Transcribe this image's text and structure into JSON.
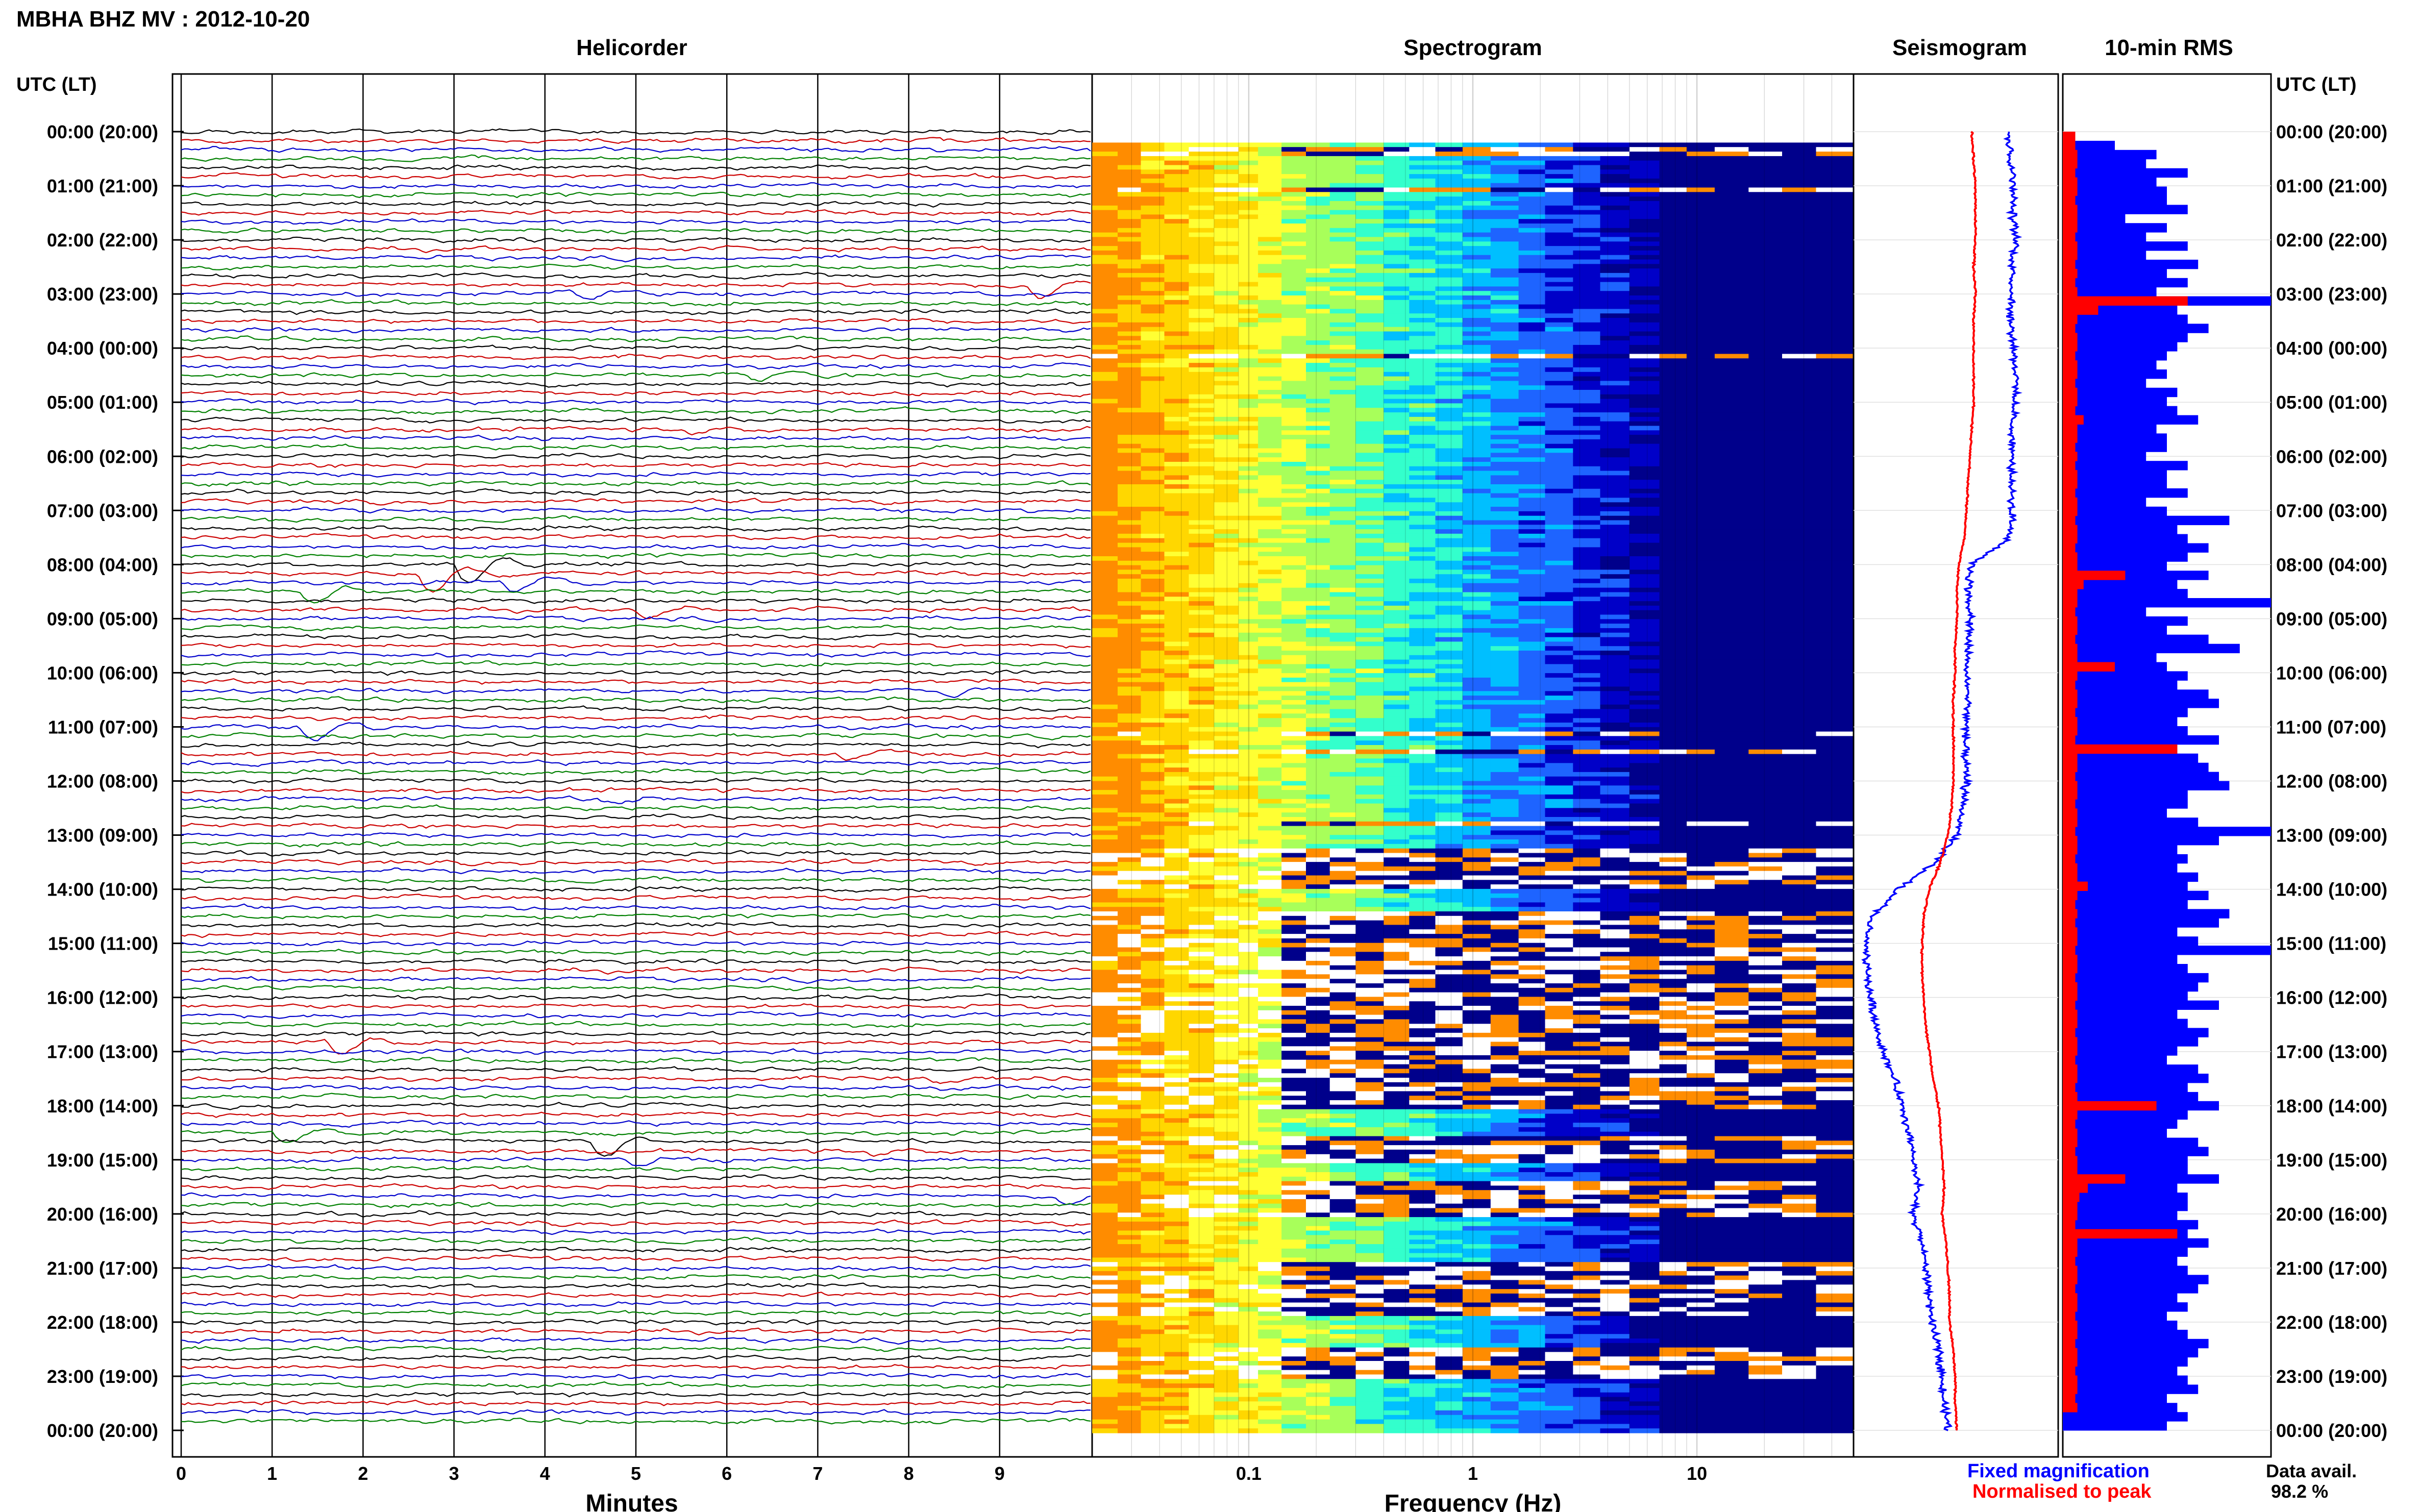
{
  "page_title": "MBHA BHZ MV : 2012-10-20",
  "hour_ticks": [
    "00:00 (20:00)",
    "01:00 (21:00)",
    "02:00 (22:00)",
    "03:00 (23:00)",
    "04:00 (00:00)",
    "05:00 (01:00)",
    "06:00 (02:00)",
    "07:00 (03:00)",
    "08:00 (04:00)",
    "09:00 (05:00)",
    "10:00 (06:00)",
    "11:00 (07:00)",
    "12:00 (08:00)",
    "13:00 (09:00)",
    "14:00 (10:00)",
    "15:00 (11:00)",
    "16:00 (12:00)",
    "17:00 (13:00)",
    "18:00 (14:00)",
    "19:00 (15:00)",
    "20:00 (16:00)",
    "21:00 (17:00)",
    "22:00 (18:00)",
    "23:00 (19:00)",
    "00:00 (20:00)"
  ],
  "chart_data": [
    {
      "type": "line",
      "title": "Helicorder",
      "y_axis_title": "UTC (LT)",
      "xlabel": "Minutes",
      "x_ticks": [
        "0",
        "1",
        "2",
        "3",
        "4",
        "5",
        "6",
        "7",
        "8",
        "9"
      ],
      "xlim": [
        0,
        10
      ],
      "trace_colors": [
        "#000000",
        "#cc0000",
        "#0000cc",
        "#008000"
      ],
      "rows_per_hour": 6,
      "grid": true
    },
    {
      "type": "heatmap",
      "title": "Spectrogram",
      "xlabel": "Frequency (Hz)",
      "x_scale": "log",
      "x_ticks": [
        "0.1",
        "1",
        "10"
      ],
      "x_tick_values": [
        0.1,
        1,
        10
      ],
      "xlim": [
        0.02,
        50
      ],
      "colormap": [
        "#ffffff",
        "#ff8c00",
        "#ffd700",
        "#ffff33",
        "#a8ff5a",
        "#33ffcc",
        "#00bfff",
        "#1e64ff",
        "#0000c8",
        "#00008b"
      ],
      "data_gaps_utc": [
        "00:17-00:25",
        "01:00-01:05",
        "04:05-04:10",
        "11:05-11:10",
        "11:22-11:28",
        "12:40-12:45",
        "13:10-13:55",
        "14:20-18:00",
        "18:30-19:00",
        "19:20-20:00",
        "20:50-21:50",
        "22:25-23:00"
      ]
    },
    {
      "type": "line",
      "title": "Seismogram",
      "legend": [
        {
          "name": "Fixed magnification",
          "color": "#0000ff"
        },
        {
          "name": "Normalised to peak",
          "color": "#ff0000"
        }
      ],
      "legend_position": "bottom",
      "x_hours": [
        0,
        0.5,
        1,
        1.5,
        2,
        2.5,
        3,
        3.5,
        4,
        4.5,
        5,
        5.5,
        6,
        6.5,
        7,
        7.5,
        8,
        8.5,
        9,
        9.5,
        10,
        10.5,
        11,
        11.5,
        12,
        12.5,
        13,
        13.5,
        14,
        14.5,
        15,
        15.5,
        16,
        16.5,
        17,
        17.5,
        18,
        18.5,
        19,
        19.5,
        20,
        20.5,
        21,
        21.5,
        22,
        22.5,
        23,
        23.5,
        24
      ],
      "series": [
        {
          "name": "Fixed magnification",
          "values": [
            0.8,
            0.81,
            0.83,
            0.82,
            0.84,
            0.82,
            0.82,
            0.81,
            0.83,
            0.84,
            0.83,
            0.82,
            0.82,
            0.81,
            0.82,
            0.81,
            0.6,
            0.58,
            0.59,
            0.58,
            0.57,
            0.58,
            0.57,
            0.56,
            0.57,
            0.55,
            0.52,
            0.4,
            0.2,
            0.06,
            0.02,
            0.03,
            0.05,
            0.08,
            0.12,
            0.18,
            0.22,
            0.26,
            0.28,
            0.31,
            0.28,
            0.33,
            0.35,
            0.37,
            0.38,
            0.42,
            0.44,
            0.45,
            0.47
          ]
        },
        {
          "name": "Normalised to peak",
          "values": [
            0.6,
            0.61,
            0.62,
            0.62,
            0.62,
            0.61,
            0.62,
            0.61,
            0.61,
            0.61,
            0.61,
            0.6,
            0.59,
            0.58,
            0.57,
            0.56,
            0.53,
            0.52,
            0.52,
            0.51,
            0.51,
            0.5,
            0.5,
            0.5,
            0.5,
            0.49,
            0.47,
            0.43,
            0.37,
            0.34,
            0.33,
            0.33,
            0.34,
            0.35,
            0.37,
            0.39,
            0.42,
            0.43,
            0.44,
            0.45,
            0.44,
            0.46,
            0.47,
            0.48,
            0.48,
            0.5,
            0.51,
            0.51,
            0.52
          ]
        }
      ],
      "annotation_title": "Data avail.",
      "annotation_value": "98.2 %"
    },
    {
      "type": "bar",
      "title": "10-min RMS",
      "orientation": "horizontal",
      "series": [
        {
          "name": "Fixed magnification",
          "color": "#0000ff",
          "values": [
            0.25,
            0.25,
            0.45,
            0.4,
            0.6,
            0.45,
            0.5,
            0.5,
            0.6,
            0.3,
            0.5,
            0.4,
            0.6,
            0.4,
            0.65,
            0.5,
            0.6,
            0.45,
            1.0,
            0.55,
            0.6,
            0.7,
            0.6,
            0.55,
            0.5,
            0.45,
            0.5,
            0.4,
            0.55,
            0.5,
            0.55,
            0.65,
            0.45,
            0.5,
            0.5,
            0.4,
            0.6,
            0.5,
            0.5,
            0.6,
            0.4,
            0.5,
            0.8,
            0.55,
            0.6,
            0.7,
            0.6,
            0.5,
            0.7,
            0.55,
            0.6,
            1.0,
            0.4,
            0.6,
            0.5,
            0.7,
            0.85,
            0.45,
            0.5,
            0.6,
            0.55,
            0.7,
            0.75,
            0.6,
            0.55,
            0.6,
            0.75,
            0.55,
            0.65,
            0.7,
            0.75,
            0.8,
            0.6,
            0.6,
            0.5,
            0.65,
            1.0,
            0.75,
            0.55,
            0.6,
            0.55,
            0.65,
            0.6,
            0.7,
            0.6,
            0.8,
            0.75,
            0.55,
            0.65,
            1.0,
            0.55,
            0.6,
            0.7,
            0.65,
            0.6,
            0.75,
            0.55,
            0.6,
            0.7,
            0.65,
            0.55,
            0.5,
            0.65,
            0.7,
            0.6,
            0.65,
            0.75,
            0.6,
            0.55,
            0.5,
            0.65,
            0.7,
            0.6,
            0.6,
            0.75,
            0.55,
            0.6,
            0.6,
            0.55,
            0.65,
            0.6,
            0.7,
            0.6,
            0.55,
            0.6,
            0.7,
            0.65,
            0.55,
            0.6,
            0.5,
            0.55,
            0.6,
            0.7,
            0.65,
            0.6,
            0.55,
            0.6,
            0.65,
            0.5,
            0.55,
            0.6,
            0.5
          ]
        },
        {
          "name": "Normalised to peak",
          "color": "#ff0000",
          "values": [
            0.06,
            0.06,
            0.07,
            0.07,
            0.06,
            0.07,
            0.07,
            0.06,
            0.07,
            0.07,
            0.07,
            0.06,
            0.07,
            0.07,
            0.06,
            0.07,
            0.06,
            0.07,
            0.6,
            0.17,
            0.07,
            0.06,
            0.07,
            0.07,
            0.06,
            0.07,
            0.07,
            0.06,
            0.07,
            0.07,
            0.06,
            0.1,
            0.07,
            0.07,
            0.06,
            0.07,
            0.06,
            0.07,
            0.07,
            0.06,
            0.07,
            0.07,
            0.06,
            0.07,
            0.07,
            0.06,
            0.07,
            0.07,
            0.3,
            0.1,
            0.07,
            0.07,
            0.06,
            0.07,
            0.07,
            0.06,
            0.07,
            0.07,
            0.25,
            0.07,
            0.06,
            0.07,
            0.07,
            0.06,
            0.07,
            0.07,
            0.06,
            0.55,
            0.07,
            0.07,
            0.06,
            0.07,
            0.07,
            0.06,
            0.07,
            0.07,
            0.06,
            0.07,
            0.07,
            0.06,
            0.07,
            0.07,
            0.12,
            0.07,
            0.06,
            0.07,
            0.06,
            0.07,
            0.07,
            0.06,
            0.07,
            0.07,
            0.06,
            0.07,
            0.07,
            0.06,
            0.07,
            0.07,
            0.06,
            0.07,
            0.07,
            0.06,
            0.07,
            0.07,
            0.06,
            0.07,
            0.45,
            0.07,
            0.06,
            0.07,
            0.07,
            0.06,
            0.07,
            0.07,
            0.3,
            0.12,
            0.08,
            0.07,
            0.07,
            0.06,
            0.55,
            0.07,
            0.07,
            0.06,
            0.07,
            0.07,
            0.06,
            0.07,
            0.07,
            0.06,
            0.07,
            0.07,
            0.06,
            0.07,
            0.07,
            0.06,
            0.07,
            0.07,
            0.06,
            0.07
          ]
        }
      ]
    }
  ]
}
